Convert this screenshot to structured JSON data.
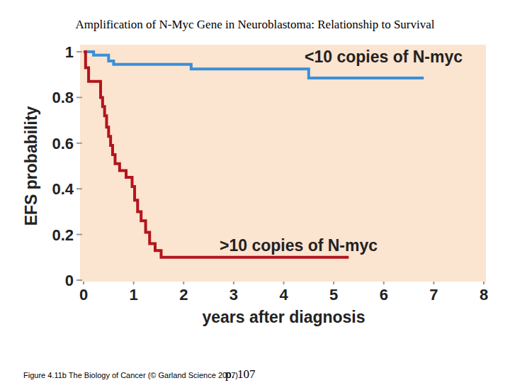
{
  "chart_data": {
    "type": "line",
    "line_style": "step",
    "title": "Amplification of N-Myc Gene in Neuroblastoma: Relationship to Survival",
    "x_label": "years after diagnosis",
    "y_label": "EFS probability",
    "footer": "Figure 4.11b  The Biology of Cancer (© Garland Science 2007)",
    "page": "p. 107",
    "xlim": [
      0,
      8
    ],
    "xticks": [
      0,
      1,
      2,
      3,
      4,
      5,
      6,
      7,
      8
    ],
    "ylim": [
      0,
      1
    ],
    "yticks": [
      0,
      0.2,
      0.4,
      0.6,
      0.8,
      1
    ],
    "grid": false,
    "series": [
      {
        "name": "<10 copies of N-myc",
        "color": "#3b8fd8",
        "x": [
          0,
          0.2,
          0.5,
          0.6,
          2.15,
          4.5,
          6.8
        ],
        "values": [
          1,
          0.985,
          0.96,
          0.945,
          0.925,
          0.885,
          0.885
        ]
      },
      {
        "name": ">10 copies of N-myc",
        "color": "#b3141c",
        "x": [
          0,
          0.04,
          0.1,
          0.34,
          0.38,
          0.42,
          0.46,
          0.5,
          0.54,
          0.58,
          0.63,
          0.72,
          0.85,
          0.97,
          1.02,
          1.08,
          1.15,
          1.24,
          1.32,
          1.43,
          1.55,
          5.3
        ],
        "values": [
          1,
          0.93,
          0.87,
          0.8,
          0.76,
          0.72,
          0.67,
          0.63,
          0.59,
          0.55,
          0.51,
          0.48,
          0.45,
          0.41,
          0.35,
          0.3,
          0.26,
          0.21,
          0.16,
          0.13,
          0.1,
          0.1
        ]
      }
    ]
  }
}
